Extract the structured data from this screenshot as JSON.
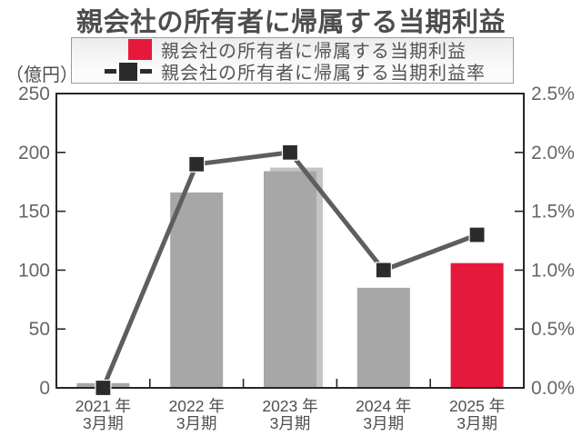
{
  "title": "親会社の所有者に帰属する当期利益",
  "unit_label": "（億円）",
  "legend": {
    "bar_label": "親会社の所有者に帰属する当期利益",
    "line_label": "親会社の所有者に帰属する当期利益率"
  },
  "colors": {
    "bar_gray": "#a7a7a7",
    "bar_red": "#e6193c",
    "bar_ghost": "#c4c4c4",
    "line": "#5e5e5e",
    "marker": "#2b2b2b",
    "axis": "#262626",
    "tick_label": "#666666",
    "category_label": "#4f4f4f"
  },
  "chart_data": {
    "type": "bar+line combo",
    "title": "親会社の所有者に帰属する当期利益",
    "categories": [
      "2021年3月期",
      "2022年3月期",
      "2023年3月期",
      "2024年3月期",
      "2025年3月期"
    ],
    "category_labels": [
      [
        "2021 年",
        "3月期"
      ],
      [
        "2022 年",
        "3月期"
      ],
      [
        "2023 年",
        "3月期"
      ],
      [
        "2024 年",
        "3月期"
      ],
      [
        "2025 年",
        "3月期"
      ]
    ],
    "series": [
      {
        "name": "親会社の所有者に帰属する当期利益",
        "type": "bar",
        "unit": "億円",
        "axis": "left",
        "values": [
          4,
          166,
          184,
          85,
          106
        ],
        "colors": [
          "#a7a7a7",
          "#a7a7a7",
          "#a7a7a7",
          "#a7a7a7",
          "#e6193c"
        ]
      },
      {
        "name": "親会社の所有者に帰属する当期利益率",
        "type": "line",
        "unit": "%",
        "axis": "right",
        "values": [
          0.0,
          1.9,
          2.0,
          1.0,
          1.3
        ]
      }
    ],
    "left_axis": {
      "label": "（億円）",
      "min": 0,
      "max": 250,
      "tick_step": 50,
      "tick_labels": [
        "0",
        "50",
        "100",
        "150",
        "200",
        "250"
      ]
    },
    "right_axis": {
      "min": 0,
      "max": 2.5,
      "tick_labels": [
        "0.0%",
        "0.5%",
        "1.0%",
        "1.5%",
        "2.0%",
        "2.5%"
      ]
    },
    "grid": false,
    "legend_position": "top",
    "bar_shadow": {
      "category_index": 2
    }
  }
}
